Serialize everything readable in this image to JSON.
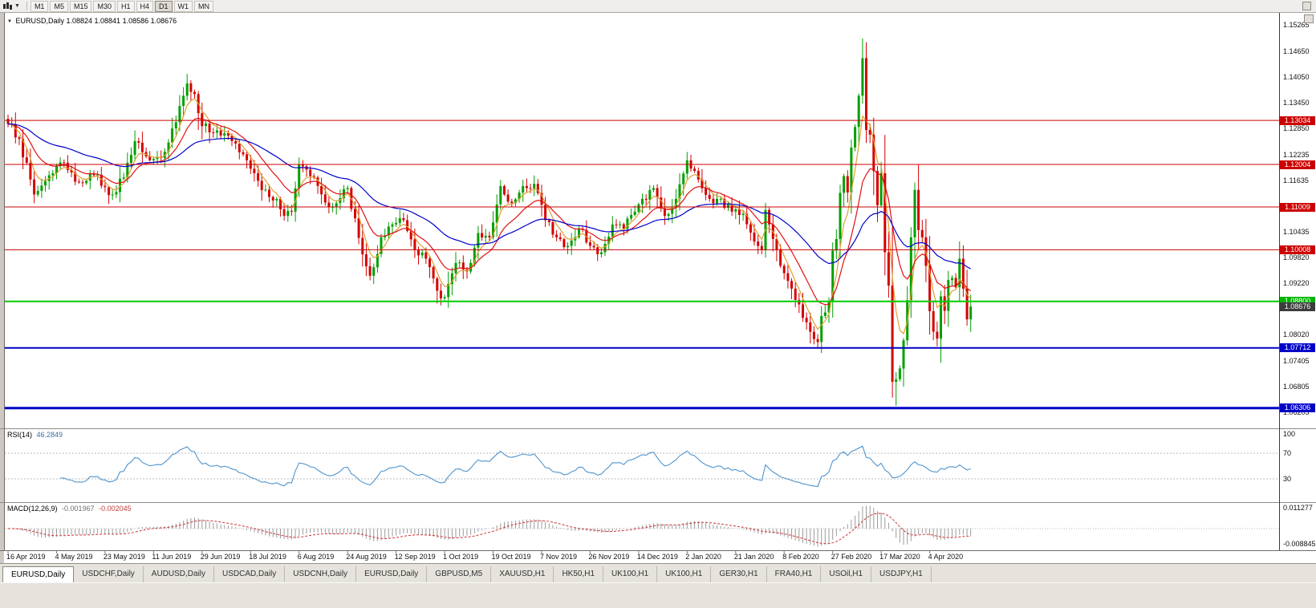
{
  "toolbar": {
    "timeframes": [
      "M1",
      "M5",
      "M15",
      "M30",
      "H1",
      "H4",
      "D1",
      "W1",
      "MN"
    ],
    "active_timeframe": "D1"
  },
  "chart": {
    "title": "EURUSD,Daily",
    "ohlc": "1.08824 1.08841 1.08586 1.08676"
  },
  "rsi": {
    "label": "RSI(14)",
    "value": "46.2849",
    "levels": [
      70,
      30
    ],
    "ticks": [
      {
        "label": "100",
        "value": 100
      },
      {
        "label": "70",
        "value": 70
      },
      {
        "label": "30",
        "value": 30
      }
    ]
  },
  "macd": {
    "label": "MACD(12,26,9)",
    "value_main": "-0.001967",
    "value_signal": "-0.002045",
    "tick_top": "0.011277",
    "tick_bottom": "-0.008845"
  },
  "price_axis": {
    "ticks": [
      {
        "label": "1.15265",
        "value": 1.15265
      },
      {
        "label": "1.14650",
        "value": 1.1465
      },
      {
        "label": "1.14050",
        "value": 1.1405
      },
      {
        "label": "1.13450",
        "value": 1.1345
      },
      {
        "label": "1.12850",
        "value": 1.1285
      },
      {
        "label": "1.12235",
        "value": 1.12235
      },
      {
        "label": "1.11635",
        "value": 1.11635
      },
      {
        "label": "1.11035",
        "value": 1.11035
      },
      {
        "label": "1.10435",
        "value": 1.10435
      },
      {
        "label": "1.09820",
        "value": 1.0982
      },
      {
        "label": "1.09220",
        "value": 1.0922
      },
      {
        "label": "1.08620",
        "value": 1.0862
      },
      {
        "label": "1.08020",
        "value": 1.0802
      },
      {
        "label": "1.07405",
        "value": 1.07405
      },
      {
        "label": "1.06805",
        "value": 1.06805
      },
      {
        "label": "1.06205",
        "value": 1.06205
      }
    ],
    "badges": [
      {
        "label": "1.13034",
        "price": 1.13034,
        "color": "#cc0000",
        "kind": "resistance-badge"
      },
      {
        "label": "1.12004",
        "price": 1.12004,
        "color": "#cc0000",
        "kind": "resistance-badge"
      },
      {
        "label": "1.11009",
        "price": 1.11009,
        "color": "#cc0000",
        "kind": "resistance-badge"
      },
      {
        "label": "1.10008",
        "price": 1.10008,
        "color": "#cc0000",
        "kind": "resistance-badge"
      },
      {
        "label": "1.08800",
        "price": 1.088,
        "color": "#00b400",
        "kind": "support-badge"
      },
      {
        "label": "1.08676",
        "price": 1.08676,
        "color": "#3c3c3c",
        "kind": "last-price-badge"
      },
      {
        "label": "1.07712",
        "price": 1.07712,
        "color": "#0000c8",
        "kind": "support-badge"
      },
      {
        "label": "1.06306",
        "price": 1.06306,
        "color": "#0000c8",
        "kind": "support-badge"
      }
    ]
  },
  "hlines": [
    {
      "price": 1.13034,
      "color": "#cc0000",
      "width": 1
    },
    {
      "price": 1.12004,
      "color": "#cc0000",
      "width": 1
    },
    {
      "price": 1.11009,
      "color": "#cc0000",
      "width": 1
    },
    {
      "price": 1.10008,
      "color": "#cc0000",
      "width": 1
    },
    {
      "price": 1.088,
      "color": "#00cc00",
      "width": 2
    },
    {
      "price": 1.07712,
      "color": "#0000c8",
      "width": 2
    },
    {
      "price": 1.06306,
      "color": "#0000c8",
      "width": 3
    }
  ],
  "date_axis": [
    {
      "label": "16 Apr 2019",
      "i": 0
    },
    {
      "label": "4 May 2019",
      "i": 13
    },
    {
      "label": "23 May 2019",
      "i": 26
    },
    {
      "label": "11 Jun 2019",
      "i": 39
    },
    {
      "label": "29 Jun 2019",
      "i": 52
    },
    {
      "label": "18 Jul 2019",
      "i": 65
    },
    {
      "label": "6 Aug 2019",
      "i": 78
    },
    {
      "label": "24 Aug 2019",
      "i": 91
    },
    {
      "label": "12 Sep 2019",
      "i": 104
    },
    {
      "label": "1 Oct 2019",
      "i": 117
    },
    {
      "label": "19 Oct 2019",
      "i": 130
    },
    {
      "label": "7 Nov 2019",
      "i": 143
    },
    {
      "label": "26 Nov 2019",
      "i": 156
    },
    {
      "label": "14 Dec 2019",
      "i": 169
    },
    {
      "label": "2 Jan 2020",
      "i": 182
    },
    {
      "label": "21 Jan 2020",
      "i": 195
    },
    {
      "label": "8 Feb 2020",
      "i": 208
    },
    {
      "label": "27 Feb 2020",
      "i": 221
    },
    {
      "label": "17 Mar 2020",
      "i": 234
    },
    {
      "label": "4 Apr 2020",
      "i": 247
    }
  ],
  "tabs": {
    "active": 0,
    "items": [
      "EURUSD,Daily",
      "USDCHF,Daily",
      "AUDUSD,Daily",
      "USDCAD,Daily",
      "USDCNH,Daily",
      "EURUSD,Daily",
      "GBPUSD,M5",
      "XAUUSD,H1",
      "HK50,H1",
      "UK100,H1",
      "UK100,H1",
      "GER30,H1",
      "FRA40,H1",
      "USOil,H1",
      "USDJPY,H1"
    ]
  },
  "chart_data": {
    "type": "candlestick",
    "symbol": "EURUSD",
    "period": "Daily",
    "candles_count": 259,
    "price_top": 1.1555,
    "price_bottom": 1.0585,
    "up_color": "#00a000",
    "down_color": "#d40000",
    "ma": [
      {
        "period": 5,
        "color": "#e0a030"
      },
      {
        "period": 13,
        "color": "#e01010"
      },
      {
        "period": 40,
        "color": "#0000cc"
      }
    ],
    "indicators": [
      {
        "name": "RSI",
        "period": 14,
        "last": 46.2849
      },
      {
        "name": "MACD",
        "fast": 12,
        "slow": 26,
        "signal": 9,
        "last_main": -0.001967,
        "last_signal": -0.002045
      }
    ],
    "close_anchors": [
      [
        0,
        1.1295
      ],
      [
        3,
        1.126
      ],
      [
        7,
        1.113
      ],
      [
        11,
        1.1175
      ],
      [
        14,
        1.1205
      ],
      [
        18,
        1.116
      ],
      [
        23,
        1.1175
      ],
      [
        28,
        1.113
      ],
      [
        31,
        1.117
      ],
      [
        34,
        1.1255
      ],
      [
        38,
        1.121
      ],
      [
        42,
        1.123
      ],
      [
        48,
        1.139
      ],
      [
        50,
        1.1365
      ],
      [
        52,
        1.129
      ],
      [
        56,
        1.128
      ],
      [
        60,
        1.1255
      ],
      [
        64,
        1.121
      ],
      [
        68,
        1.114
      ],
      [
        72,
        1.112
      ],
      [
        74,
        1.108
      ],
      [
        76,
        1.109
      ],
      [
        78,
        1.12
      ],
      [
        82,
        1.117
      ],
      [
        86,
        1.11
      ],
      [
        91,
        1.1145
      ],
      [
        95,
        1.099
      ],
      [
        97,
        1.094
      ],
      [
        100,
        1.103
      ],
      [
        103,
        1.106
      ],
      [
        106,
        1.107
      ],
      [
        109,
        1.1
      ],
      [
        112,
        1.098
      ],
      [
        115,
        1.0905
      ],
      [
        117,
        1.089
      ],
      [
        120,
        1.097
      ],
      [
        123,
        1.095
      ],
      [
        126,
        1.104
      ],
      [
        129,
        1.103
      ],
      [
        132,
        1.115
      ],
      [
        135,
        1.111
      ],
      [
        138,
        1.115
      ],
      [
        141,
        1.1155
      ],
      [
        144,
        1.107
      ],
      [
        147,
        1.103
      ],
      [
        150,
        1.101
      ],
      [
        153,
        1.105
      ],
      [
        156,
        1.101
      ],
      [
        159,
        1.0995
      ],
      [
        162,
        1.106
      ],
      [
        165,
        1.105
      ],
      [
        168,
        1.109
      ],
      [
        170,
        1.112
      ],
      [
        173,
        1.1145
      ],
      [
        176,
        1.108
      ],
      [
        179,
        1.112
      ],
      [
        182,
        1.121
      ],
      [
        185,
        1.1165
      ],
      [
        188,
        1.112
      ],
      [
        191,
        1.112
      ],
      [
        194,
        1.109
      ],
      [
        197,
        1.1085
      ],
      [
        200,
        1.102
      ],
      [
        202,
        1.1
      ],
      [
        203,
        1.1094
      ],
      [
        204,
        1.106
      ],
      [
        206,
        1.1
      ],
      [
        208,
        1.0946
      ],
      [
        210,
        1.091
      ],
      [
        212,
        1.0873
      ],
      [
        214,
        1.0831
      ],
      [
        216,
        1.0792
      ],
      [
        217,
        1.0785
      ],
      [
        218,
        1.0846
      ],
      [
        219,
        1.0854
      ],
      [
        220,
        1.0881
      ],
      [
        221,
        1.0999
      ],
      [
        222,
        1.1026
      ],
      [
        223,
        1.1134
      ],
      [
        224,
        1.1173
      ],
      [
        225,
        1.1135
      ],
      [
        226,
        1.124
      ],
      [
        227,
        1.1288
      ],
      [
        229,
        1.1449
      ],
      [
        230,
        1.1281
      ],
      [
        231,
        1.127
      ],
      [
        232,
        1.1185
      ],
      [
        233,
        1.1105
      ],
      [
        234,
        1.118
      ],
      [
        235,
        1.0995
      ],
      [
        236,
        1.0917
      ],
      [
        237,
        1.0692
      ],
      [
        238,
        1.0698
      ],
      [
        239,
        1.0723
      ],
      [
        240,
        1.0789
      ],
      [
        241,
        1.0883
      ],
      [
        242,
        1.103
      ],
      [
        243,
        1.1141
      ],
      [
        244,
        1.1047
      ],
      [
        245,
        1.103
      ],
      [
        246,
        1.0963
      ],
      [
        247,
        1.0857
      ],
      [
        248,
        1.0809
      ],
      [
        249,
        1.0793
      ],
      [
        250,
        1.0892
      ],
      [
        251,
        1.0858
      ],
      [
        252,
        1.093
      ],
      [
        253,
        1.0935
      ],
      [
        254,
        1.0913
      ],
      [
        255,
        1.098
      ],
      [
        256,
        1.091
      ],
      [
        257,
        1.0838
      ],
      [
        258,
        1.0868
      ]
    ],
    "extremes": [
      {
        "i": 48,
        "h": 1.1412
      },
      {
        "i": 117,
        "l": 1.0879
      },
      {
        "i": 217,
        "l": 1.0778
      },
      {
        "i": 229,
        "h": 1.1495
      },
      {
        "i": 237,
        "l": 1.0655
      },
      {
        "i": 238,
        "l": 1.0636
      }
    ]
  }
}
